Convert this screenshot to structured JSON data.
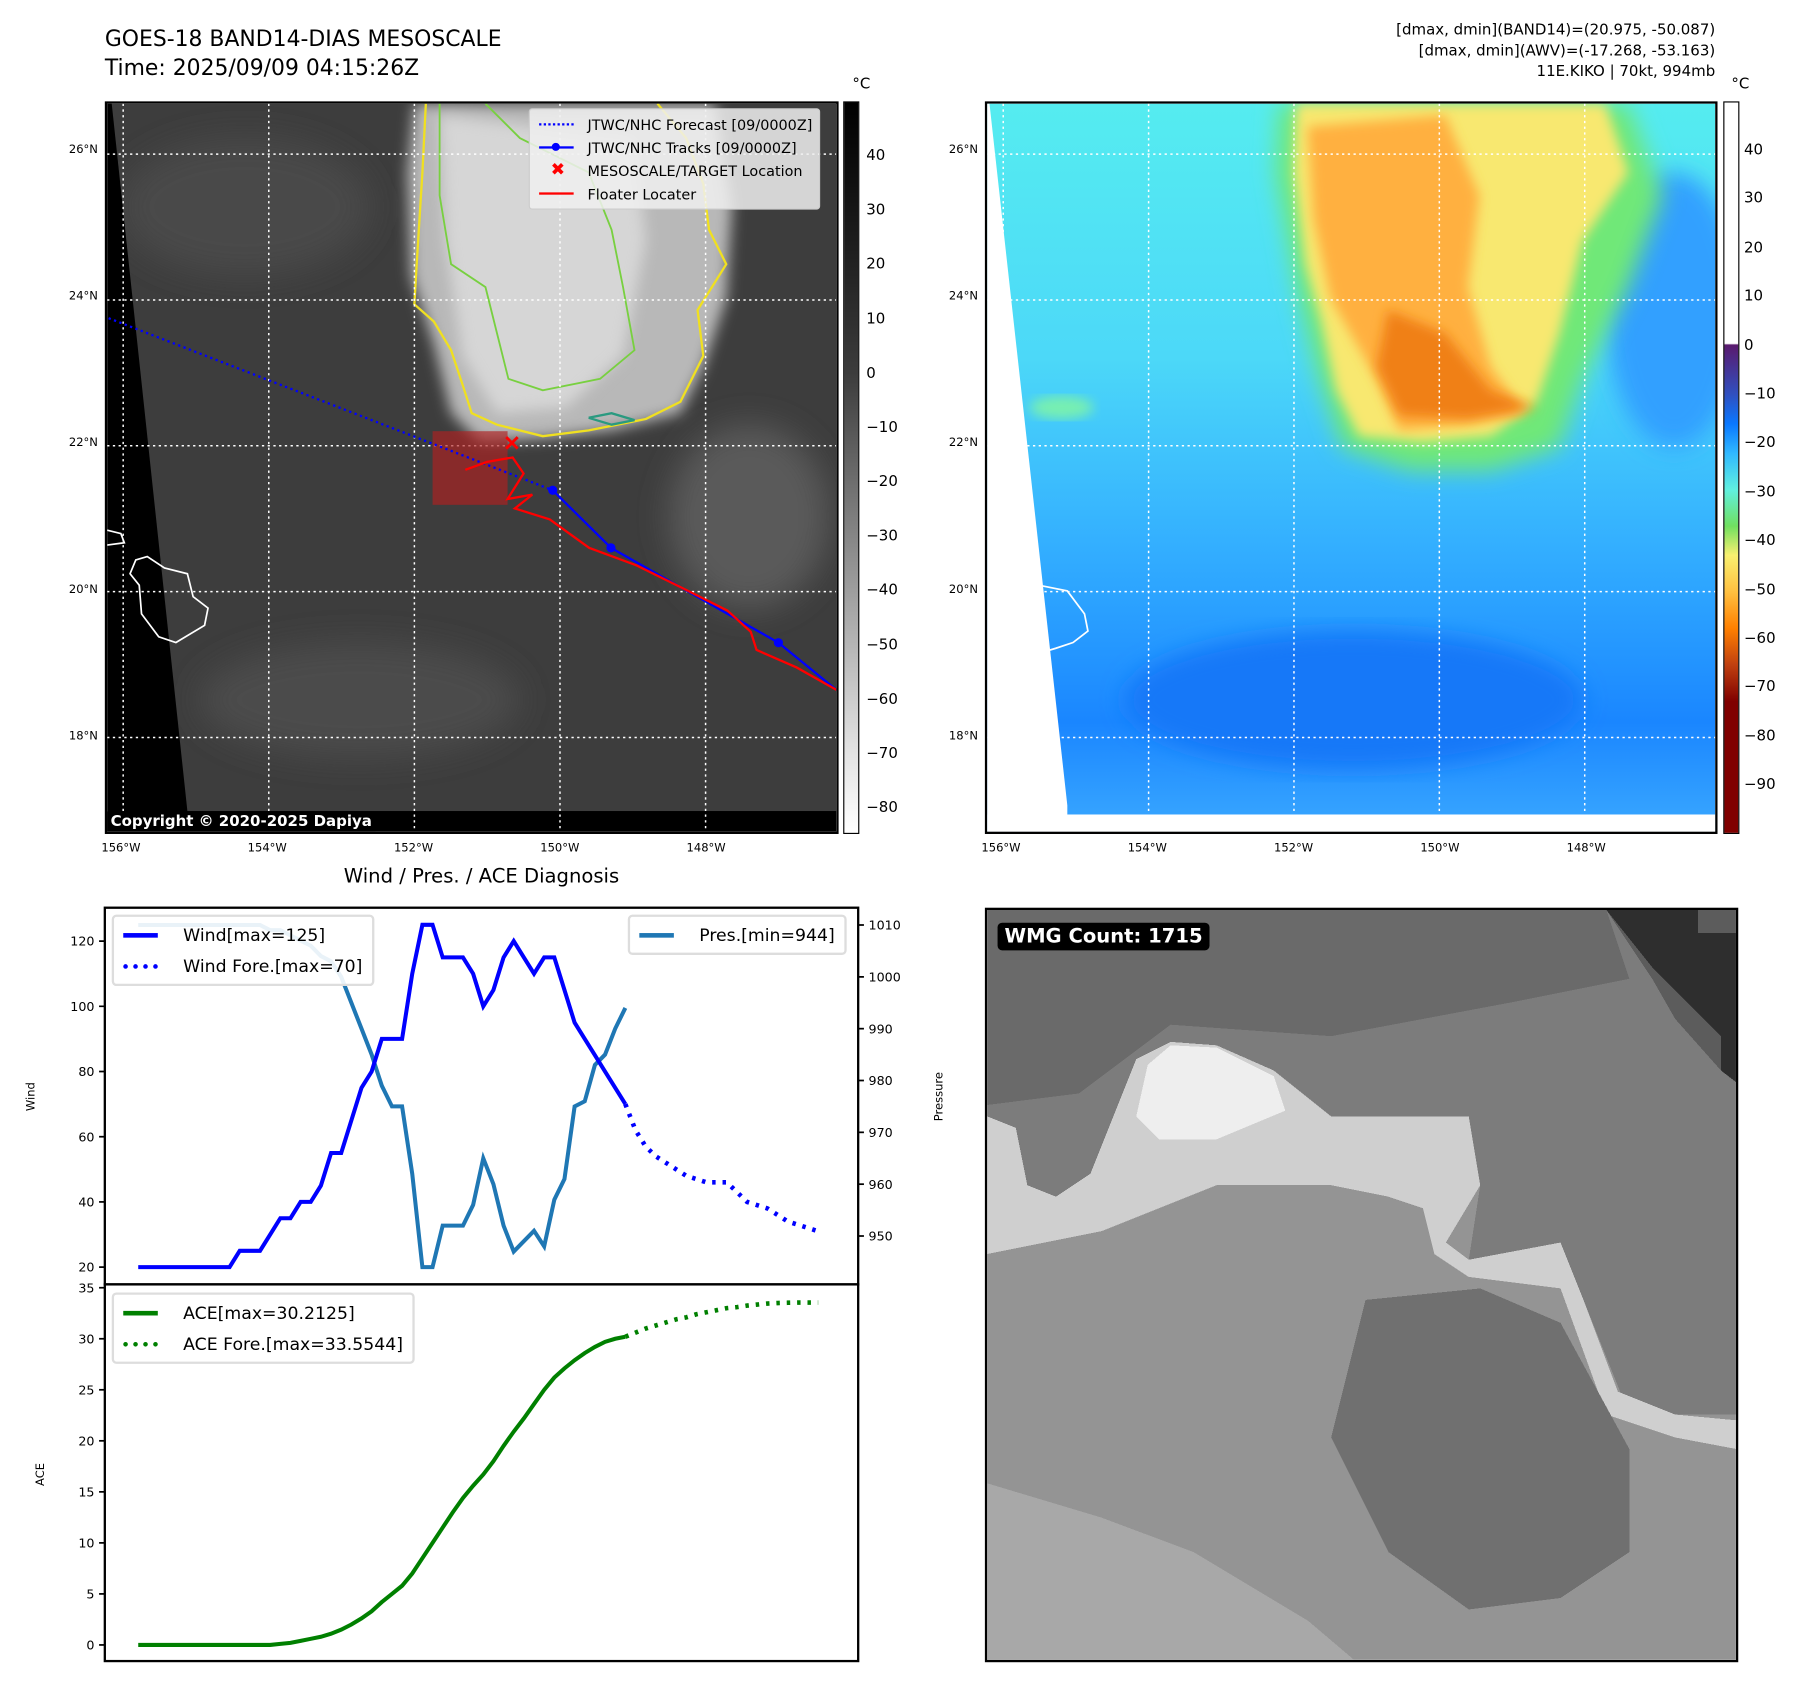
{
  "header": {
    "title": "GOES-18 BAND14-DIAS MESOSCALE",
    "time": "Time: 2025/09/09 04:15:26Z",
    "stats_band14": "[dmax, dmin](BAND14)=(20.975, -50.087)",
    "stats_awv": "[dmax, dmin](AWV)=(-17.268, -53.163)",
    "storm": "11E.KIKO | 70kt, 994mb"
  },
  "maps": {
    "lat_labels": [
      "26°N",
      "24°N",
      "22°N",
      "20°N",
      "18°N"
    ],
    "lat_values": [
      26,
      24,
      22,
      20,
      18
    ],
    "lon_labels": [
      "156°W",
      "154°W",
      "152°W",
      "150°W",
      "148°W"
    ],
    "lon_values": [
      -156,
      -154,
      -152,
      -150,
      -148
    ],
    "copyright": "Copyright © 2020-2025 Dapiya",
    "legend": [
      {
        "label": "JTWC/NHC Forecast [09/0000Z]",
        "style": "dotted",
        "color": "#0000ff"
      },
      {
        "label": "JTWC/NHC Tracks [09/0000Z]",
        "style": "line-dot",
        "color": "#0000ff"
      },
      {
        "label": "MESOSCALE/TARGET Location",
        "style": "x",
        "color": "#ff0000"
      },
      {
        "label": "Floater Locater",
        "style": "line",
        "color": "#ff0000"
      }
    ],
    "forecast_track": [
      [
        -156.2,
        23.75
      ],
      [
        -150.1,
        21.39
      ]
    ],
    "best_track": [
      [
        -150.1,
        21.39
      ],
      [
        -149.3,
        20.6
      ],
      [
        -147.0,
        19.3
      ],
      [
        -146.2,
        18.65
      ]
    ],
    "best_track_points": [
      [
        -150.1,
        21.39
      ],
      [
        -149.3,
        20.6
      ],
      [
        -147.0,
        19.3
      ]
    ],
    "floater_track": [
      [
        -151.3,
        21.67
      ],
      [
        -151.0,
        21.78
      ],
      [
        -150.65,
        21.84
      ],
      [
        -150.5,
        21.62
      ],
      [
        -150.72,
        21.27
      ],
      [
        -150.38,
        21.33
      ],
      [
        -150.62,
        21.14
      ],
      [
        -150.14,
        20.99
      ],
      [
        -149.6,
        20.6
      ],
      [
        -148.95,
        20.36
      ],
      [
        -148.32,
        20.05
      ],
      [
        -147.7,
        19.74
      ],
      [
        -147.38,
        19.45
      ],
      [
        -147.3,
        19.2
      ],
      [
        -146.75,
        18.96
      ],
      [
        -146.2,
        18.65
      ]
    ],
    "target": [
      -150.66,
      22.04
    ],
    "floater_box": {
      "lon": [
        -151.75,
        -150.72
      ],
      "lat": [
        21.19,
        22.2
      ]
    },
    "colorbar_unit": "°C",
    "colorbar1_ticks": [
      "40",
      "30",
      "20",
      "10",
      "0",
      "−10",
      "−20",
      "−30",
      "−40",
      "−50",
      "−60",
      "−70",
      "−80"
    ],
    "colorbar1_values": [
      40,
      30,
      20,
      10,
      0,
      -10,
      -20,
      -30,
      -40,
      -50,
      -60,
      -70,
      -80
    ],
    "colorbar2_ticks": [
      "40",
      "30",
      "20",
      "10",
      "0",
      "−10",
      "−20",
      "−30",
      "−40",
      "−50",
      "−60",
      "−70",
      "−80",
      "−90"
    ],
    "colorbar2_values": [
      40,
      30,
      20,
      10,
      0,
      -10,
      -20,
      -30,
      -40,
      -50,
      -60,
      -70,
      -80,
      -90
    ]
  },
  "wmg": {
    "label": "WMG Count: 1715"
  },
  "chart_data": [
    {
      "type": "line",
      "title": "Wind / Pres. / ACE Diagnosis",
      "ylabel": "Wind",
      "y2label": "Pressure",
      "ylim": [
        19,
        129.5
      ],
      "y2lim": [
        944,
        1013
      ],
      "yticks": [
        20,
        40,
        60,
        80,
        100,
        120
      ],
      "y2ticks": [
        950,
        960,
        970,
        980,
        990,
        1000,
        1010
      ],
      "legend_left": [
        "Wind[max=125]",
        "Wind Fore.[max=70]"
      ],
      "legend_right": [
        "Pres.[min=944]"
      ],
      "series": [
        {
          "name": "Wind",
          "color": "#0000ff",
          "x_start": 0,
          "values": [
            20,
            20,
            20,
            20,
            20,
            20,
            20,
            20,
            20,
            20,
            25,
            25,
            25,
            30,
            35,
            35,
            40,
            40,
            45,
            55,
            55,
            65,
            75,
            80,
            90,
            90,
            90,
            110,
            125,
            125,
            115,
            115,
            115,
            110,
            100,
            105,
            115,
            120,
            115,
            110,
            115,
            115,
            105,
            95,
            90,
            85,
            80,
            75,
            70
          ]
        },
        {
          "name": "Wind Fore.",
          "color": "#0000ff",
          "dotted": true,
          "x_start": 48,
          "values": [
            70,
            62,
            57,
            54,
            52,
            50,
            48,
            47,
            46,
            46,
            46,
            43,
            40,
            39,
            38,
            36,
            34,
            33,
            32,
            31
          ]
        },
        {
          "name": "Pres.",
          "color": "#1f77b4",
          "axis": "right",
          "x_start": 0,
          "values": [
            1010,
            1010,
            1010,
            1010,
            1010,
            1010,
            1010,
            1010,
            1010,
            1010,
            1010,
            1010,
            1010,
            1009,
            1009,
            1008,
            1007,
            1006,
            1004,
            1003,
            1000,
            995,
            990,
            985,
            979,
            975,
            975,
            962,
            944,
            944,
            952,
            952,
            952,
            956,
            965,
            960,
            952,
            947,
            949,
            951,
            948,
            957,
            961,
            975,
            976,
            983,
            985,
            990,
            994
          ]
        }
      ]
    },
    {
      "type": "line",
      "ylabel": "ACE",
      "ylim": [
        -1,
        35
      ],
      "yticks": [
        0,
        5,
        10,
        15,
        20,
        25,
        30,
        35
      ],
      "legend": [
        "ACE[max=30.2125]",
        "ACE Fore.[max=33.5544]"
      ],
      "series": [
        {
          "name": "ACE",
          "color": "#008000",
          "x_start": 0,
          "values": [
            0,
            0,
            0,
            0,
            0,
            0,
            0,
            0,
            0,
            0,
            0,
            0,
            0,
            0,
            0.1,
            0.2,
            0.4,
            0.6,
            0.8,
            1.1,
            1.5,
            2.0,
            2.6,
            3.3,
            4.2,
            5.0,
            5.8,
            7.0,
            8.5,
            10.0,
            11.5,
            13.0,
            14.4,
            15.6,
            16.7,
            18.0,
            19.5,
            20.9,
            22.2,
            23.6,
            25.0,
            26.2,
            27.1,
            27.9,
            28.6,
            29.2,
            29.7,
            30.0,
            30.2
          ]
        },
        {
          "name": "ACE Fore.",
          "color": "#008000",
          "dotted": true,
          "x_start": 48,
          "values": [
            30.2,
            30.6,
            31.0,
            31.3,
            31.6,
            31.9,
            32.1,
            32.4,
            32.6,
            32.8,
            33.0,
            33.1,
            33.25,
            33.35,
            33.45,
            33.5,
            33.53,
            33.55,
            33.55,
            33.55
          ]
        }
      ]
    }
  ]
}
